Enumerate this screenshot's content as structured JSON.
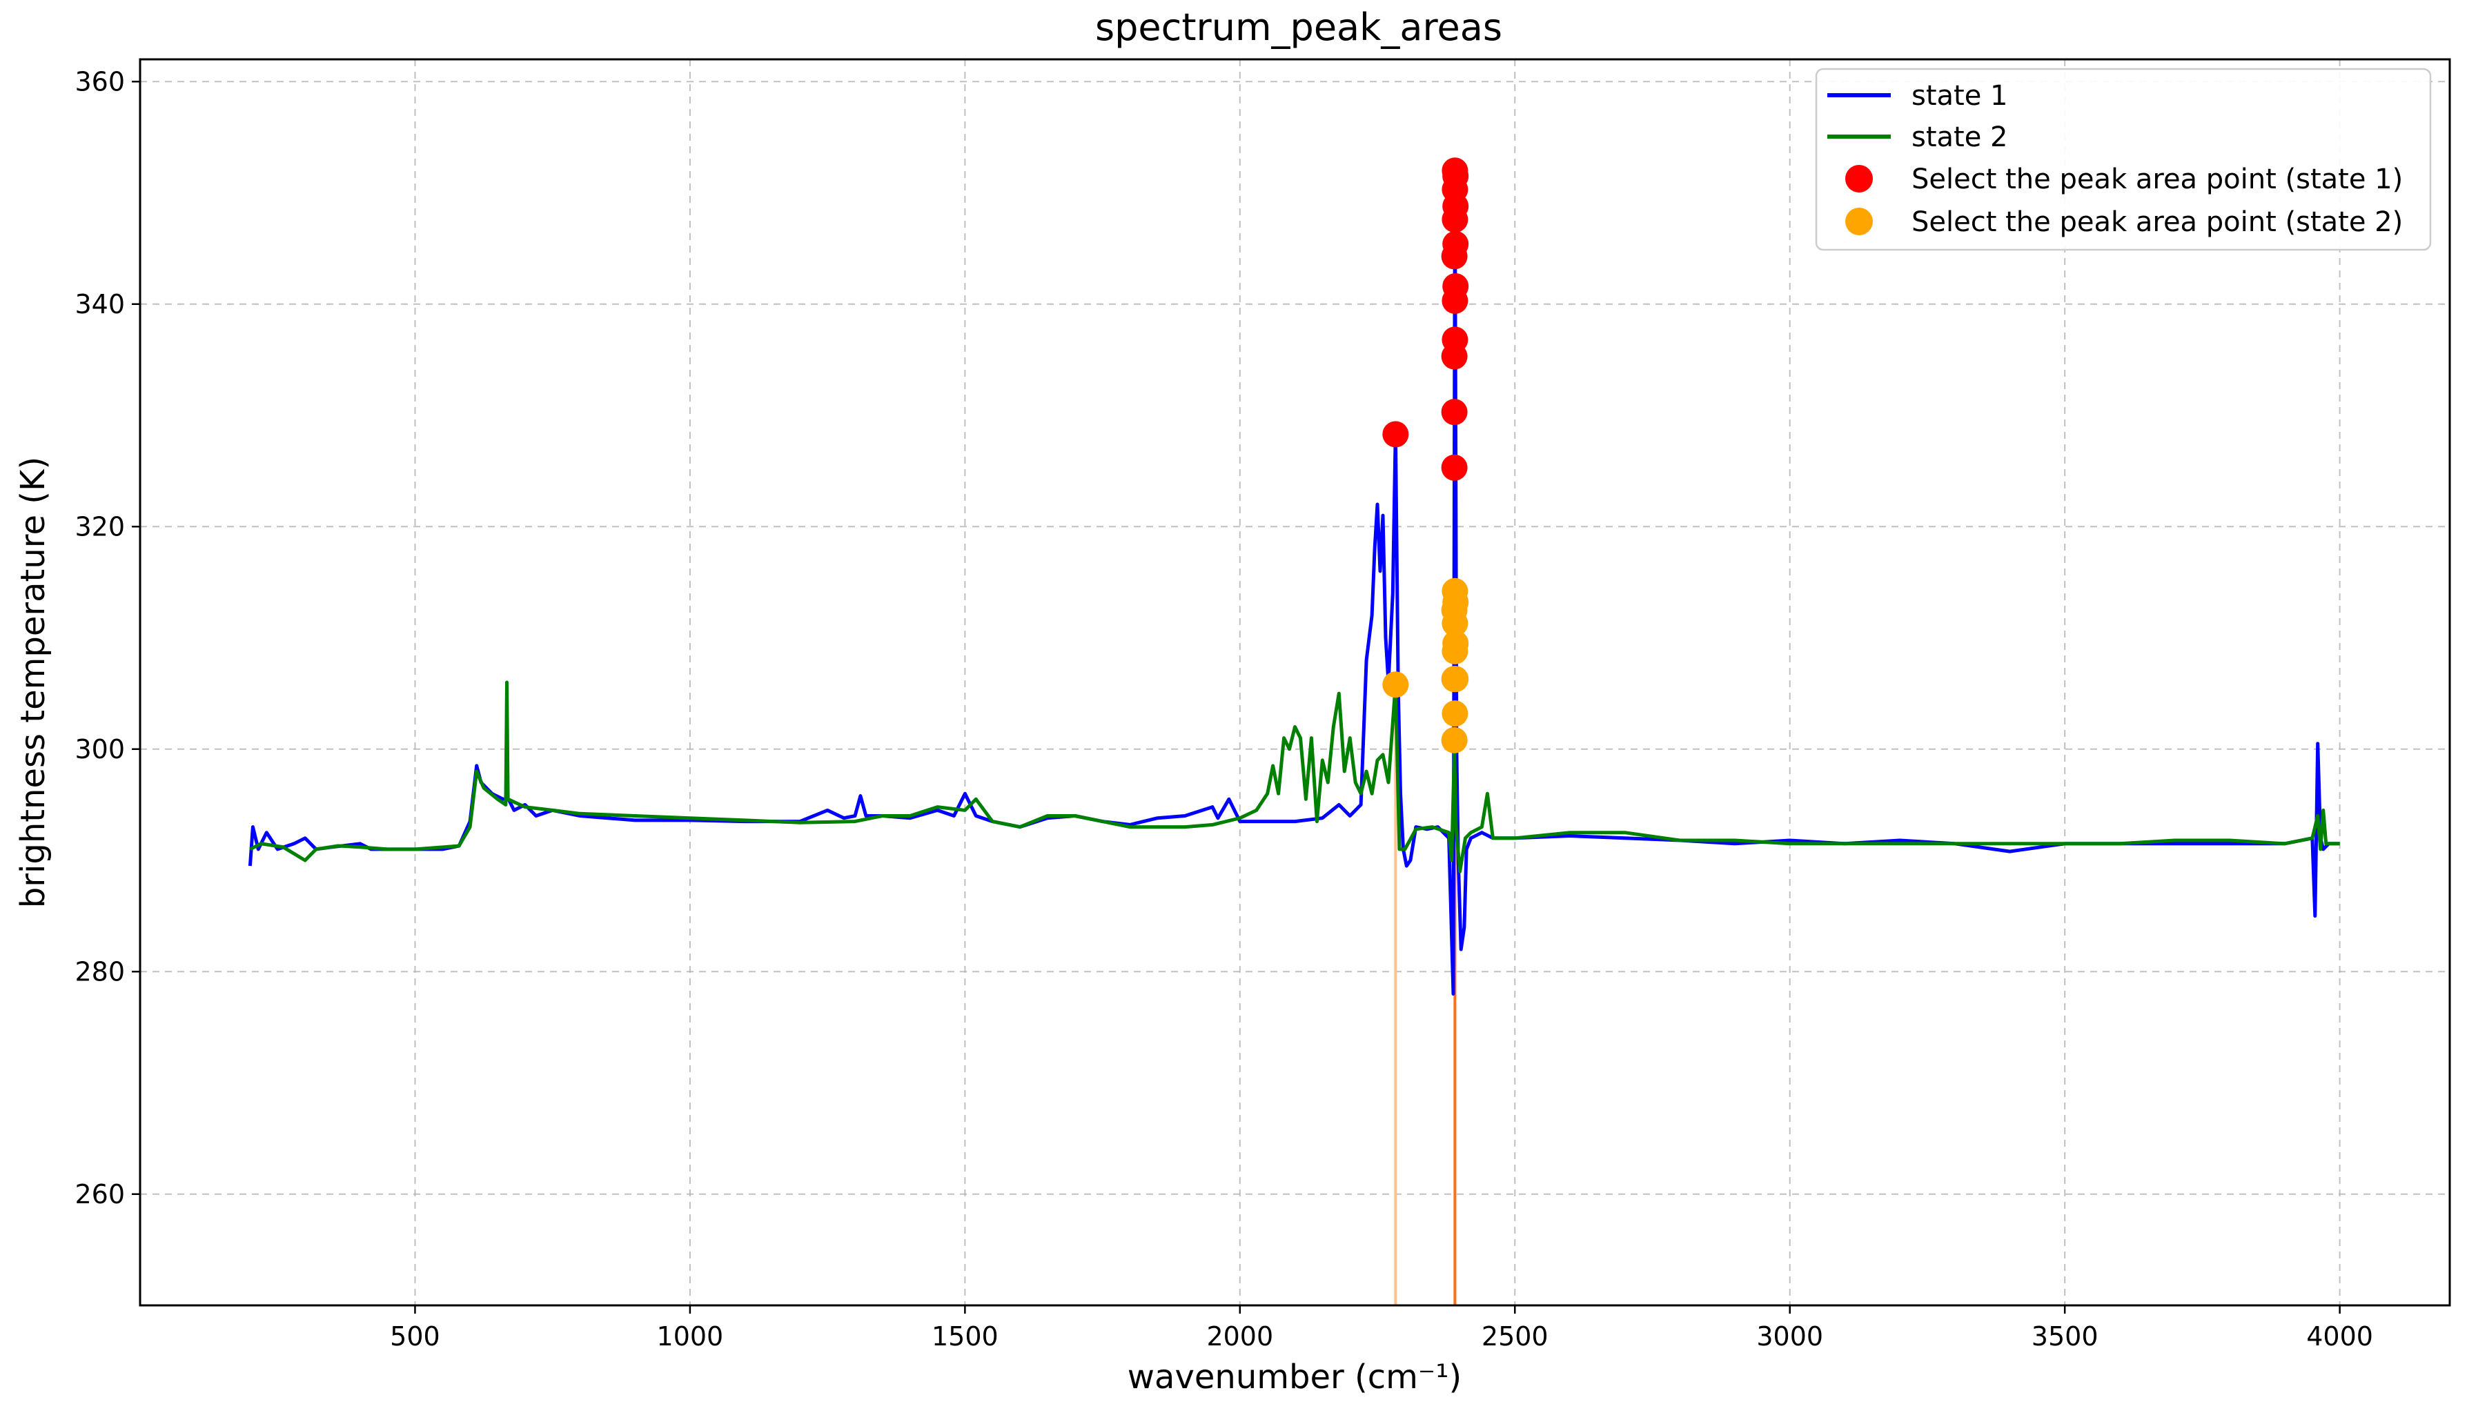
{
  "chart_data": {
    "type": "line",
    "title": "spectrum_peak_areas",
    "xlabel": "wavenumber (cm⁻¹)",
    "ylabel": "brightness temperature (K)",
    "xlim": [
      0,
      4200
    ],
    "ylim": [
      250,
      362
    ],
    "x_ticks": [
      500,
      1000,
      1500,
      2000,
      2500,
      3000,
      3500,
      4000
    ],
    "y_ticks": [
      260,
      280,
      300,
      320,
      340,
      360
    ],
    "grid": true,
    "legend_position": "top-right",
    "colors": {
      "state1": "#0000ff",
      "state2": "#008000",
      "peak1": "#ff0000",
      "peak2": "#ffa500",
      "vline1": "#ffc28a",
      "vline2": "#ff6f1a"
    },
    "series": [
      {
        "name": "state 1",
        "type": "line",
        "points": [
          [
            200,
            289.5
          ],
          [
            205,
            293
          ],
          [
            215,
            291
          ],
          [
            230,
            292.5
          ],
          [
            250,
            291
          ],
          [
            280,
            291.5
          ],
          [
            300,
            292
          ],
          [
            320,
            291
          ],
          [
            350,
            291.2
          ],
          [
            400,
            291.5
          ],
          [
            420,
            291
          ],
          [
            450,
            291
          ],
          [
            500,
            291
          ],
          [
            550,
            291
          ],
          [
            580,
            291.3
          ],
          [
            600,
            293.5
          ],
          [
            612,
            298.5
          ],
          [
            620,
            297
          ],
          [
            640,
            296
          ],
          [
            660,
            295.5
          ],
          [
            670,
            295.5
          ],
          [
            680,
            294.5
          ],
          [
            700,
            295
          ],
          [
            720,
            294
          ],
          [
            750,
            294.5
          ],
          [
            800,
            294
          ],
          [
            850,
            293.8
          ],
          [
            900,
            293.6
          ],
          [
            1000,
            293.6
          ],
          [
            1100,
            293.5
          ],
          [
            1200,
            293.5
          ],
          [
            1250,
            294.5
          ],
          [
            1280,
            293.8
          ],
          [
            1300,
            294
          ],
          [
            1310,
            295.8
          ],
          [
            1320,
            294
          ],
          [
            1350,
            294
          ],
          [
            1400,
            293.8
          ],
          [
            1450,
            294.5
          ],
          [
            1480,
            294
          ],
          [
            1500,
            296
          ],
          [
            1520,
            294
          ],
          [
            1550,
            293.5
          ],
          [
            1600,
            293
          ],
          [
            1650,
            293.8
          ],
          [
            1700,
            294
          ],
          [
            1750,
            293.5
          ],
          [
            1800,
            293.2
          ],
          [
            1850,
            293.8
          ],
          [
            1900,
            294
          ],
          [
            1950,
            294.8
          ],
          [
            1960,
            293.8
          ],
          [
            1980,
            295.5
          ],
          [
            2000,
            293.5
          ],
          [
            2050,
            293.5
          ],
          [
            2100,
            293.5
          ],
          [
            2150,
            293.8
          ],
          [
            2180,
            295
          ],
          [
            2200,
            294
          ],
          [
            2220,
            295
          ],
          [
            2230,
            308
          ],
          [
            2240,
            312
          ],
          [
            2245,
            318
          ],
          [
            2250,
            322
          ],
          [
            2255,
            316
          ],
          [
            2260,
            321
          ],
          [
            2265,
            310
          ],
          [
            2270,
            306
          ],
          [
            2278,
            314
          ],
          [
            2283,
            328.5
          ],
          [
            2288,
            305
          ],
          [
            2292,
            296
          ],
          [
            2297,
            291
          ],
          [
            2303,
            289.5
          ],
          [
            2310,
            290
          ],
          [
            2320,
            293
          ],
          [
            2340,
            292.8
          ],
          [
            2360,
            293
          ],
          [
            2380,
            292
          ],
          [
            2388,
            278
          ],
          [
            2391,
            352
          ],
          [
            2394,
            300
          ],
          [
            2397,
            290
          ],
          [
            2402,
            282
          ],
          [
            2408,
            284
          ],
          [
            2412,
            291
          ],
          [
            2420,
            292
          ],
          [
            2440,
            292.5
          ],
          [
            2460,
            292
          ],
          [
            2500,
            292
          ],
          [
            2600,
            292.2
          ],
          [
            2700,
            292
          ],
          [
            2800,
            291.8
          ],
          [
            2900,
            291.5
          ],
          [
            3000,
            291.8
          ],
          [
            3100,
            291.5
          ],
          [
            3200,
            291.8
          ],
          [
            3300,
            291.5
          ],
          [
            3400,
            290.8
          ],
          [
            3500,
            291.5
          ],
          [
            3600,
            291.5
          ],
          [
            3700,
            291.5
          ],
          [
            3800,
            291.5
          ],
          [
            3900,
            291.5
          ],
          [
            3950,
            292
          ],
          [
            3955,
            285
          ],
          [
            3960,
            300.5
          ],
          [
            3965,
            292
          ],
          [
            3970,
            291
          ],
          [
            3980,
            291.5
          ],
          [
            4000,
            291.5
          ]
        ]
      },
      {
        "name": "state 2",
        "type": "line",
        "points": [
          [
            200,
            291
          ],
          [
            220,
            291.5
          ],
          [
            260,
            291.2
          ],
          [
            300,
            290
          ],
          [
            320,
            291
          ],
          [
            360,
            291.3
          ],
          [
            400,
            291.2
          ],
          [
            450,
            291
          ],
          [
            500,
            291
          ],
          [
            580,
            291.3
          ],
          [
            600,
            293
          ],
          [
            612,
            298
          ],
          [
            625,
            296.5
          ],
          [
            650,
            295.5
          ],
          [
            665,
            295
          ],
          [
            667,
            306
          ],
          [
            669,
            295.5
          ],
          [
            700,
            294.8
          ],
          [
            750,
            294.5
          ],
          [
            800,
            294.2
          ],
          [
            900,
            294
          ],
          [
            1000,
            293.8
          ],
          [
            1100,
            293.6
          ],
          [
            1200,
            293.4
          ],
          [
            1300,
            293.5
          ],
          [
            1350,
            294
          ],
          [
            1400,
            294
          ],
          [
            1450,
            294.8
          ],
          [
            1500,
            294.5
          ],
          [
            1520,
            295.5
          ],
          [
            1550,
            293.5
          ],
          [
            1600,
            293
          ],
          [
            1650,
            294
          ],
          [
            1700,
            294
          ],
          [
            1750,
            293.5
          ],
          [
            1800,
            293
          ],
          [
            1900,
            293
          ],
          [
            1950,
            293.2
          ],
          [
            2000,
            293.8
          ],
          [
            2030,
            294.5
          ],
          [
            2050,
            296
          ],
          [
            2060,
            298.5
          ],
          [
            2070,
            296
          ],
          [
            2080,
            301
          ],
          [
            2090,
            300
          ],
          [
            2100,
            302
          ],
          [
            2110,
            301
          ],
          [
            2120,
            295.5
          ],
          [
            2130,
            301
          ],
          [
            2140,
            293.5
          ],
          [
            2150,
            299
          ],
          [
            2160,
            297
          ],
          [
            2170,
            302
          ],
          [
            2180,
            305
          ],
          [
            2190,
            298
          ],
          [
            2200,
            301
          ],
          [
            2210,
            297
          ],
          [
            2220,
            296
          ],
          [
            2230,
            298
          ],
          [
            2240,
            296
          ],
          [
            2250,
            299
          ],
          [
            2260,
            299.5
          ],
          [
            2270,
            297
          ],
          [
            2283,
            305.8
          ],
          [
            2290,
            291
          ],
          [
            2300,
            291
          ],
          [
            2320,
            292.8
          ],
          [
            2350,
            293
          ],
          [
            2380,
            292.5
          ],
          [
            2385,
            290
          ],
          [
            2390,
            300
          ],
          [
            2393,
            293
          ],
          [
            2400,
            289
          ],
          [
            2410,
            292
          ],
          [
            2420,
            292.5
          ],
          [
            2440,
            293
          ],
          [
            2450,
            296
          ],
          [
            2460,
            292
          ],
          [
            2500,
            292
          ],
          [
            2600,
            292.5
          ],
          [
            2700,
            292.5
          ],
          [
            2800,
            291.8
          ],
          [
            2900,
            291.8
          ],
          [
            3000,
            291.5
          ],
          [
            3100,
            291.5
          ],
          [
            3200,
            291.5
          ],
          [
            3300,
            291.5
          ],
          [
            3400,
            291.5
          ],
          [
            3500,
            291.5
          ],
          [
            3600,
            291.5
          ],
          [
            3700,
            291.8
          ],
          [
            3800,
            291.8
          ],
          [
            3900,
            291.5
          ],
          [
            3950,
            292
          ],
          [
            3960,
            294
          ],
          [
            3965,
            291
          ],
          [
            3970,
            294.5
          ],
          [
            3975,
            291.5
          ],
          [
            4000,
            291.5
          ]
        ]
      },
      {
        "name": "Select the peak area point (state 1)",
        "type": "scatter",
        "points": [
          [
            2283,
            328.3
          ],
          [
            2390,
            325.3
          ],
          [
            2390,
            330.3
          ],
          [
            2390,
            335.3
          ],
          [
            2391,
            336.8
          ],
          [
            2391,
            340.3
          ],
          [
            2392,
            341.6
          ],
          [
            2390,
            344.3
          ],
          [
            2392,
            345.4
          ],
          [
            2391,
            347.6
          ],
          [
            2392,
            348.8
          ],
          [
            2391,
            350.3
          ],
          [
            2392,
            351.5
          ],
          [
            2391,
            352
          ]
        ]
      },
      {
        "name": "Select the peak area point (state 2)",
        "type": "scatter",
        "points": [
          [
            2283,
            305.8
          ],
          [
            2390,
            300.8
          ],
          [
            2391,
            303.2
          ],
          [
            2390,
            306.3
          ],
          [
            2392,
            306.3
          ],
          [
            2391,
            308.8
          ],
          [
            2392,
            309.5
          ],
          [
            2391,
            311.3
          ],
          [
            2390,
            312.5
          ],
          [
            2392,
            313.2
          ],
          [
            2391,
            314.2
          ]
        ]
      }
    ],
    "vertical_lines": [
      {
        "x": 2283,
        "y_top": 305.8,
        "color": "vline1"
      },
      {
        "x": 2391,
        "y_top": 300.8,
        "color": "vline2"
      }
    ]
  }
}
